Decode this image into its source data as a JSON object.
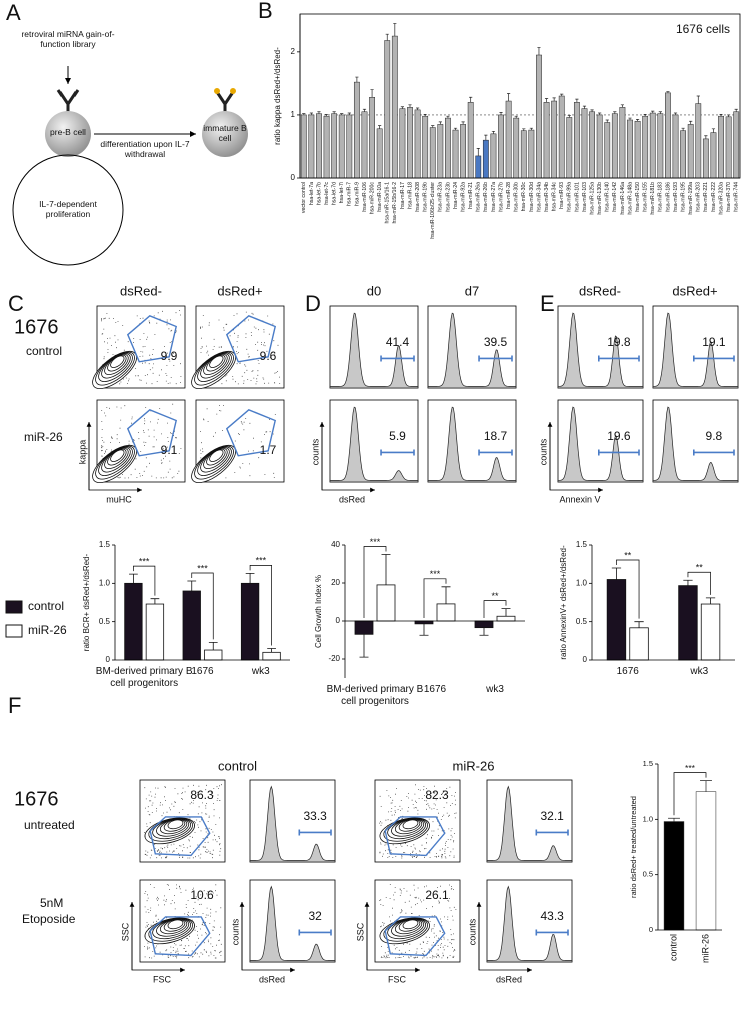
{
  "panel_labels": [
    "A",
    "B",
    "C",
    "D",
    "E",
    "F"
  ],
  "diagram": {
    "library": "retroviral miRNA gain-of-function library",
    "pre_b": "pre-B cell",
    "transition": "differentiation upon IL-7 withdrawal",
    "immature": "immature B cell",
    "loop": "IL-7-dependent proliferation"
  },
  "flow_c": {
    "columns": [
      "dsRed-",
      "dsRed+"
    ],
    "cell_line": "1676",
    "rows": [
      "control",
      "miR-26"
    ],
    "values": [
      [
        9.9,
        9.6
      ],
      [
        9.1,
        1.7
      ]
    ],
    "y_axis": "kappa",
    "x_axis": "muHC"
  },
  "flow_d": {
    "columns": [
      "d0",
      "d7"
    ],
    "values": [
      [
        41.4,
        39.5
      ],
      [
        5.9,
        18.7
      ]
    ],
    "y_axis": "counts",
    "x_axis": "dsRed"
  },
  "flow_e": {
    "columns": [
      "dsRed-",
      "dsRed+"
    ],
    "values": [
      [
        19.8,
        19.1
      ],
      [
        19.6,
        9.8
      ]
    ],
    "y_axis": "counts",
    "x_axis": "Annexin V"
  },
  "flow_f": {
    "columns": [
      "control",
      "miR-26"
    ],
    "rows": [
      {
        "title": "1676",
        "subtitle": "untreated"
      },
      {
        "title": "5nM",
        "subtitle": "Etoposide"
      }
    ],
    "scatter_values": [
      [
        86.3,
        82.3
      ],
      [
        10.6,
        26.1
      ]
    ],
    "histogram_values": [
      [
        33.3,
        32.1
      ],
      [
        32,
        43.3
      ]
    ],
    "scatter_y_axis": "SSC",
    "scatter_x_axis": "FSC",
    "histogram_y_axis": "counts",
    "histogram_x_axis": "dsRed"
  },
  "chart_data": [
    {
      "type": "bar",
      "title": "1676 cells",
      "y_label": "ratio kappa dsRed+/dsRed-",
      "categories": [
        "vector control",
        "hsa-let-7a",
        "hsa-let-7b",
        "hsa-let-7c",
        "hsa-let-7d",
        "hsa-let-7i",
        "hsa-miR-7",
        "hsa-miR-9",
        "hsa-miR-106",
        "hsa-miR-200c",
        "hsa-miR-10a",
        "hsa-miR-15a/16-1",
        "hsa-miR-15b/16-2",
        "hsa-miR-17",
        "hsa-miR-18",
        "hsa-miR-208",
        "hsa-miR-19b",
        "hsa-miR-106b/25-cluster",
        "hsa-miR-23a",
        "hsa-miR-23b",
        "hsa-miR-24",
        "hsa-miR-92a",
        "hsa-miR-21",
        "hsa-miR-26a",
        "hsa-miR-26b",
        "hsa-miR-27a",
        "hsa-miR-27b",
        "hsa-miR-28",
        "hsa-miR-30b",
        "hsa-miR-30c",
        "hsa-miR-30d",
        "hsa-miR-34a",
        "hsa-miR-34b",
        "hsa-miR-34c",
        "hsa-miR-93",
        "hsa-miR-99a",
        "hsa-miR-101",
        "hsa-miR-103",
        "hsa-miR-125a",
        "hsa-miR-130b",
        "hsa-miR-140",
        "hsa-miR-142",
        "hsa-miR-146a",
        "hsa-miR-148a",
        "hsa-miR-150",
        "hsa-miR-155",
        "hsa-miR-181b",
        "hsa-miR-183",
        "hsa-miR-186",
        "hsa-miR-193",
        "hsa-miR-195",
        "hsa-miR-199a",
        "hsa-miR-203",
        "hsa-miR-221",
        "hsa-miR-222",
        "hsa-miR-320a",
        "hsa-miR-370",
        "hsa-miR-744"
      ],
      "values": [
        1.0,
        1.0,
        1.02,
        0.98,
        1.02,
        1.0,
        1.0,
        1.52,
        1.05,
        1.28,
        0.78,
        2.18,
        2.25,
        1.1,
        1.12,
        1.08,
        0.98,
        0.8,
        0.85,
        0.95,
        0.76,
        0.85,
        1.2,
        0.35,
        0.6,
        0.7,
        1.0,
        1.22,
        0.95,
        0.75,
        0.76,
        1.95,
        1.2,
        1.22,
        1.3,
        0.96,
        1.2,
        1.1,
        1.05,
        1.0,
        0.88,
        1.02,
        1.12,
        0.92,
        0.9,
        0.98,
        1.03,
        1.02,
        1.35,
        1.0,
        0.75,
        0.85,
        1.18,
        0.62,
        0.72,
        0.98,
        0.97,
        1.05
      ],
      "errors": [
        0.02,
        0.03,
        0.03,
        0.03,
        0.03,
        0.02,
        0.03,
        0.08,
        0.04,
        0.12,
        0.05,
        0.1,
        0.2,
        0.03,
        0.04,
        0.03,
        0.03,
        0.03,
        0.04,
        0.03,
        0.03,
        0.04,
        0.08,
        0.12,
        0.08,
        0.04,
        0.04,
        0.12,
        0.03,
        0.03,
        0.03,
        0.12,
        0.06,
        0.05,
        0.03,
        0.03,
        0.05,
        0.04,
        0.03,
        0.03,
        0.04,
        0.03,
        0.04,
        0.03,
        0.03,
        0.03,
        0.03,
        0.03,
        0.02,
        0.03,
        0.04,
        0.05,
        0.12,
        0.05,
        0.06,
        0.03,
        0.03,
        0.04
      ],
      "colors": [
        "#b3b3b3",
        "#b3b3b3",
        "#b3b3b3",
        "#b3b3b3",
        "#b3b3b3",
        "#b3b3b3",
        "#b3b3b3",
        "#b3b3b3",
        "#b3b3b3",
        "#b3b3b3",
        "#b3b3b3",
        "#b3b3b3",
        "#b3b3b3",
        "#b3b3b3",
        "#b3b3b3",
        "#b3b3b3",
        "#b3b3b3",
        "#b3b3b3",
        "#b3b3b3",
        "#b3b3b3",
        "#b3b3b3",
        "#b3b3b3",
        "#b3b3b3",
        "#4a78c2",
        "#4a78c2",
        "#b3b3b3",
        "#b3b3b3",
        "#b3b3b3",
        "#b3b3b3",
        "#b3b3b3",
        "#b3b3b3",
        "#b3b3b3",
        "#b3b3b3",
        "#b3b3b3",
        "#b3b3b3",
        "#b3b3b3",
        "#b3b3b3",
        "#b3b3b3",
        "#b3b3b3",
        "#b3b3b3",
        "#b3b3b3",
        "#b3b3b3",
        "#b3b3b3",
        "#b3b3b3",
        "#b3b3b3",
        "#b3b3b3",
        "#b3b3b3",
        "#b3b3b3",
        "#b3b3b3",
        "#b3b3b3",
        "#b3b3b3",
        "#b3b3b3",
        "#b3b3b3",
        "#b3b3b3",
        "#b3b3b3",
        "#b3b3b3",
        "#b3b3b3",
        "#b3b3b3"
      ],
      "reference_line": 1,
      "ylim": [
        0,
        2.6
      ],
      "yticks": [
        0,
        1,
        2
      ]
    },
    {
      "type": "grouped_bar",
      "y_label": "ratio BCR+ dsRed+/dsRed-",
      "categories": [
        "BM-derived primary B cell progenitors",
        "1676",
        "wk3"
      ],
      "series": [
        {
          "name": "control",
          "color": "#1a1020",
          "values": [
            1.0,
            0.9,
            1.0
          ],
          "errors": [
            0.12,
            0.13,
            0.13
          ]
        },
        {
          "name": "miR-26",
          "color": "#ffffff",
          "values": [
            0.73,
            0.13,
            0.1
          ],
          "errors": [
            0.07,
            0.1,
            0.05
          ]
        }
      ],
      "significance": [
        "***",
        "***",
        "***"
      ],
      "ylim": [
        0,
        1.5
      ],
      "yticks": [
        0,
        0.5,
        {
          "value": 1,
          "label": "1.0"
        },
        1.5
      ]
    },
    {
      "type": "grouped_bar",
      "y_label": "Cell Growth Index %",
      "categories": [
        "BM-derived primary B cell progenitors",
        "1676",
        "wk3"
      ],
      "series": [
        {
          "color": "#1a1020",
          "values": [
            -7,
            -1.5,
            -3.5
          ],
          "errors": [
            12,
            6,
            4
          ]
        },
        {
          "color": "#ffffff",
          "values": [
            19,
            9,
            2.5
          ],
          "errors": [
            16,
            9,
            4
          ]
        }
      ],
      "significance": [
        "***",
        "***",
        "**"
      ],
      "ylim": [
        -30,
        40
      ],
      "yticks": [
        -20,
        0,
        20,
        40
      ]
    },
    {
      "type": "grouped_bar",
      "y_label": "ratio AnnexinV+ dsRed+/dsRed-",
      "categories": [
        "1676",
        "wk3"
      ],
      "series": [
        {
          "color": "#1a1020",
          "values": [
            1.05,
            0.97
          ],
          "errors": [
            0.15,
            0.07
          ]
        },
        {
          "color": "#ffffff",
          "values": [
            0.42,
            0.73
          ],
          "errors": [
            0.08,
            0.08
          ]
        }
      ],
      "significance": [
        "**",
        "**"
      ],
      "ylim": [
        0,
        1.5
      ],
      "yticks": [
        0,
        0.5,
        {
          "value": 1,
          "label": "1.0"
        },
        1.5
      ]
    },
    {
      "type": "bar",
      "y_label": "ratio dsRed+ treated/untreated",
      "categories": [
        "control",
        "miR-26"
      ],
      "values": [
        0.98,
        1.25
      ],
      "errors": [
        0.03,
        0.1
      ],
      "colors": [
        "#000000",
        "#ffffff"
      ],
      "significance": [
        "***"
      ],
      "ylim": [
        0,
        1.5
      ],
      "yticks": [
        0,
        0.5,
        {
          "value": 1,
          "label": "1.0"
        },
        1.5
      ]
    }
  ]
}
